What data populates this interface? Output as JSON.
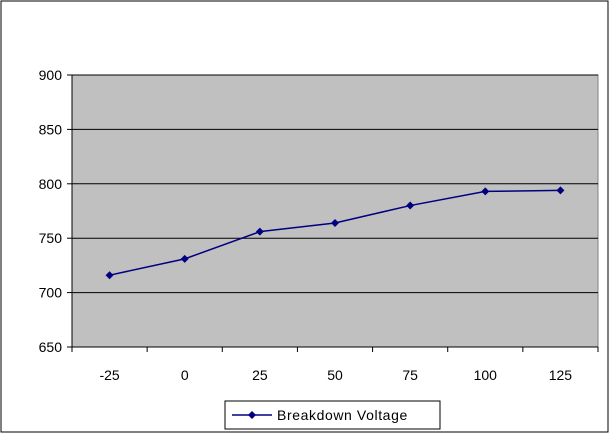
{
  "chart_data": {
    "type": "line",
    "title": "",
    "xlabel": "",
    "ylabel": "",
    "categories": [
      "-25",
      "0",
      "25",
      "50",
      "75",
      "100",
      "125"
    ],
    "series": [
      {
        "name": "Breakdown Voltage",
        "values": [
          716,
          731,
          756,
          764,
          780,
          793,
          794
        ],
        "color": "#000080"
      }
    ],
    "ylim": [
      650,
      900
    ],
    "yticks": [
      "650",
      "700",
      "750",
      "800",
      "850",
      "900"
    ],
    "grid": "horizontal",
    "plot_background": "#c0c0c0",
    "legend_position": "bottom-center"
  }
}
